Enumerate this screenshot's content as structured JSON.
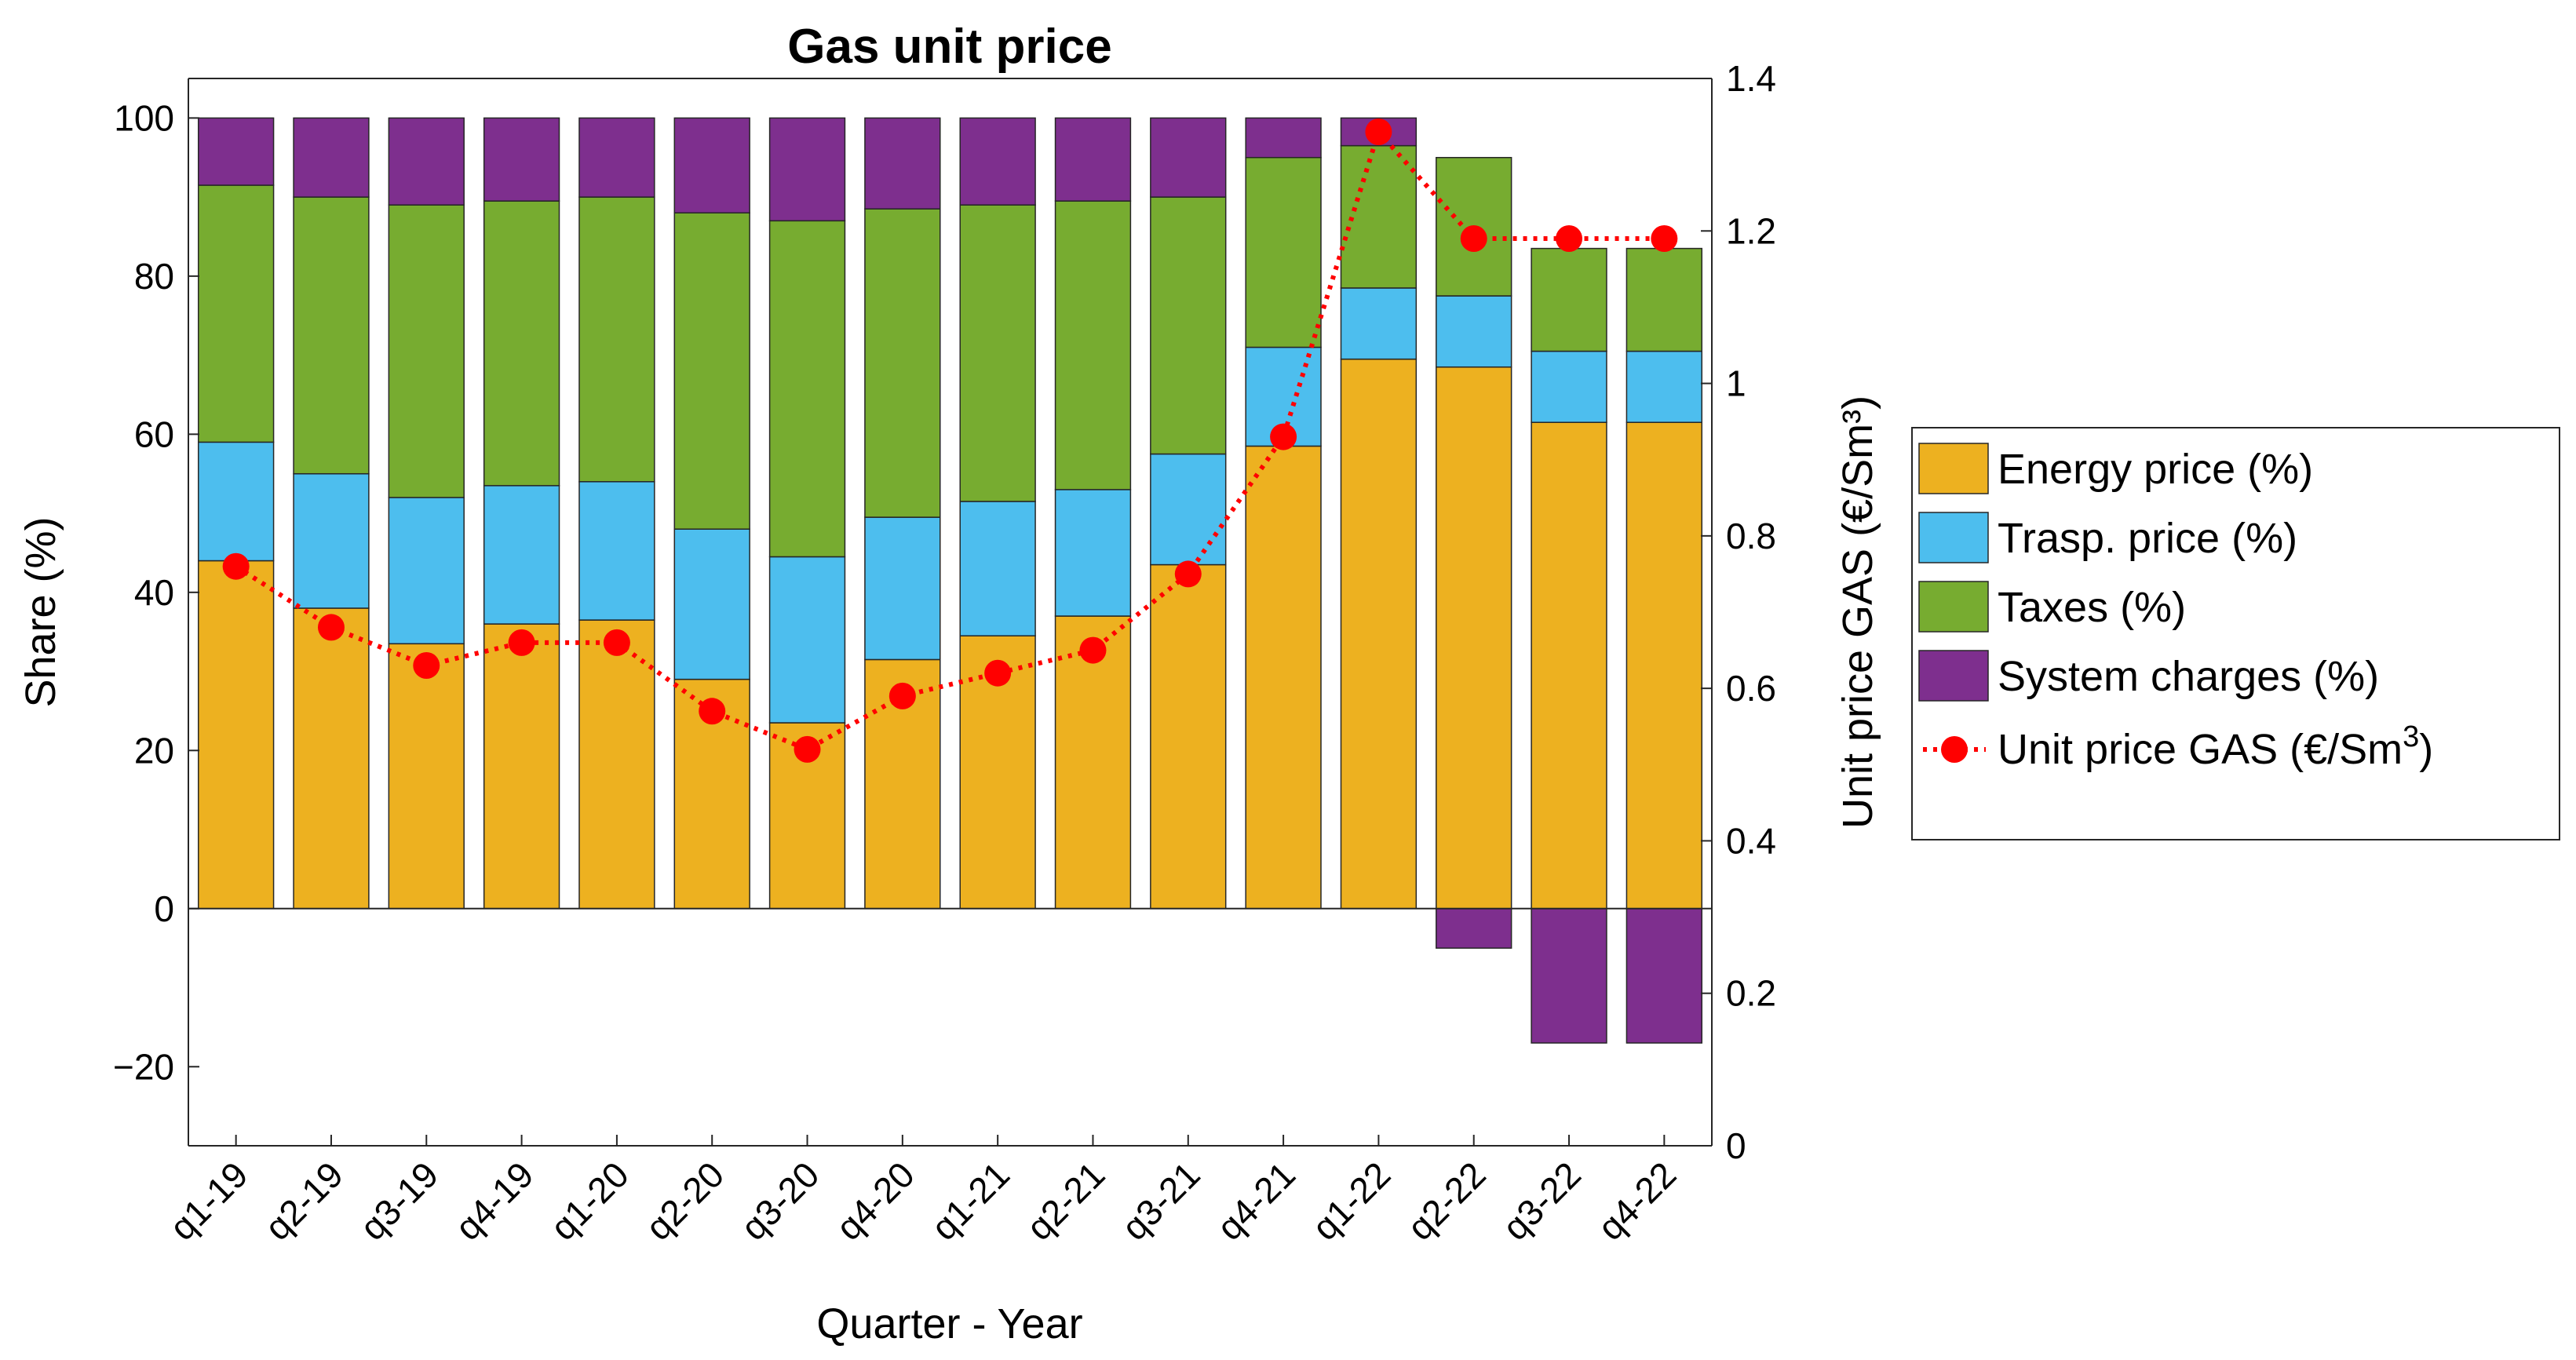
{
  "chart_data": {
    "type": "bar",
    "stacked": true,
    "title": "Gas unit price",
    "xlabel": "Quarter - Year",
    "ylabel_left": "Share (%)",
    "ylabel_right": "Unit price GAS (€/Sm³)",
    "ylim_left": [
      -30,
      105
    ],
    "ylim_right": [
      0,
      1.4
    ],
    "yticks_left": [
      "100",
      "80",
      "60",
      "40",
      "20",
      "0",
      "−20"
    ],
    "yticks_left_values": [
      100,
      80,
      60,
      40,
      20,
      0,
      -20
    ],
    "yticks_right": [
      "1.4",
      "1.2",
      "1",
      "0.8",
      "0.6",
      "0.4",
      "0.2",
      "0"
    ],
    "yticks_right_values": [
      1.4,
      1.2,
      1.0,
      0.8,
      0.6,
      0.4,
      0.2,
      0
    ],
    "categories": [
      "q1-19",
      "q2-19",
      "q3-19",
      "q4-19",
      "q1-20",
      "q2-20",
      "q3-20",
      "q4-20",
      "q1-21",
      "q2-21",
      "q3-21",
      "q4-21",
      "q1-22",
      "q2-22",
      "q3-22",
      "q4-22"
    ],
    "series": [
      {
        "name": "Energy price (%)",
        "color": "#EDB120",
        "values": [
          44,
          38,
          33.5,
          36,
          36.5,
          29,
          23.5,
          31.5,
          34.5,
          37,
          43.5,
          58.5,
          69.5,
          68.5,
          61.5,
          61.5
        ]
      },
      {
        "name": "Trasp. price (%)",
        "color": "#4DBEEE",
        "values": [
          15,
          17,
          18.5,
          17.5,
          17.5,
          19,
          21,
          18,
          17,
          16,
          14,
          12.5,
          9,
          9,
          9,
          9
        ]
      },
      {
        "name": "Taxes (%)",
        "color": "#77AC30",
        "values": [
          32.5,
          35,
          37,
          36,
          36,
          40,
          42.5,
          39,
          37.5,
          36.5,
          32.5,
          24,
          18,
          17.5,
          13,
          13
        ]
      },
      {
        "name": "System charges (%)",
        "color": "#7E2F8E",
        "values": [
          8.5,
          10,
          11,
          10.5,
          10,
          12,
          13,
          11.5,
          11,
          10.5,
          10,
          5,
          3.5,
          -5,
          -17,
          -17
        ]
      }
    ],
    "line_series": {
      "name": "Unit price GAS (€/Sm",
      "name_superscript": "3",
      "name_suffix": ")",
      "color": "#FF0000",
      "axis": "right",
      "values": [
        0.76,
        0.68,
        0.63,
        0.66,
        0.66,
        0.57,
        0.52,
        0.59,
        0.62,
        0.65,
        0.75,
        0.93,
        1.33,
        1.19,
        1.19,
        1.19
      ]
    },
    "legend": {
      "position": "right",
      "items": [
        "Energy price (%)",
        "Trasp. price (%)",
        "Taxes (%)",
        "System charges (%)"
      ]
    },
    "grid": false
  }
}
